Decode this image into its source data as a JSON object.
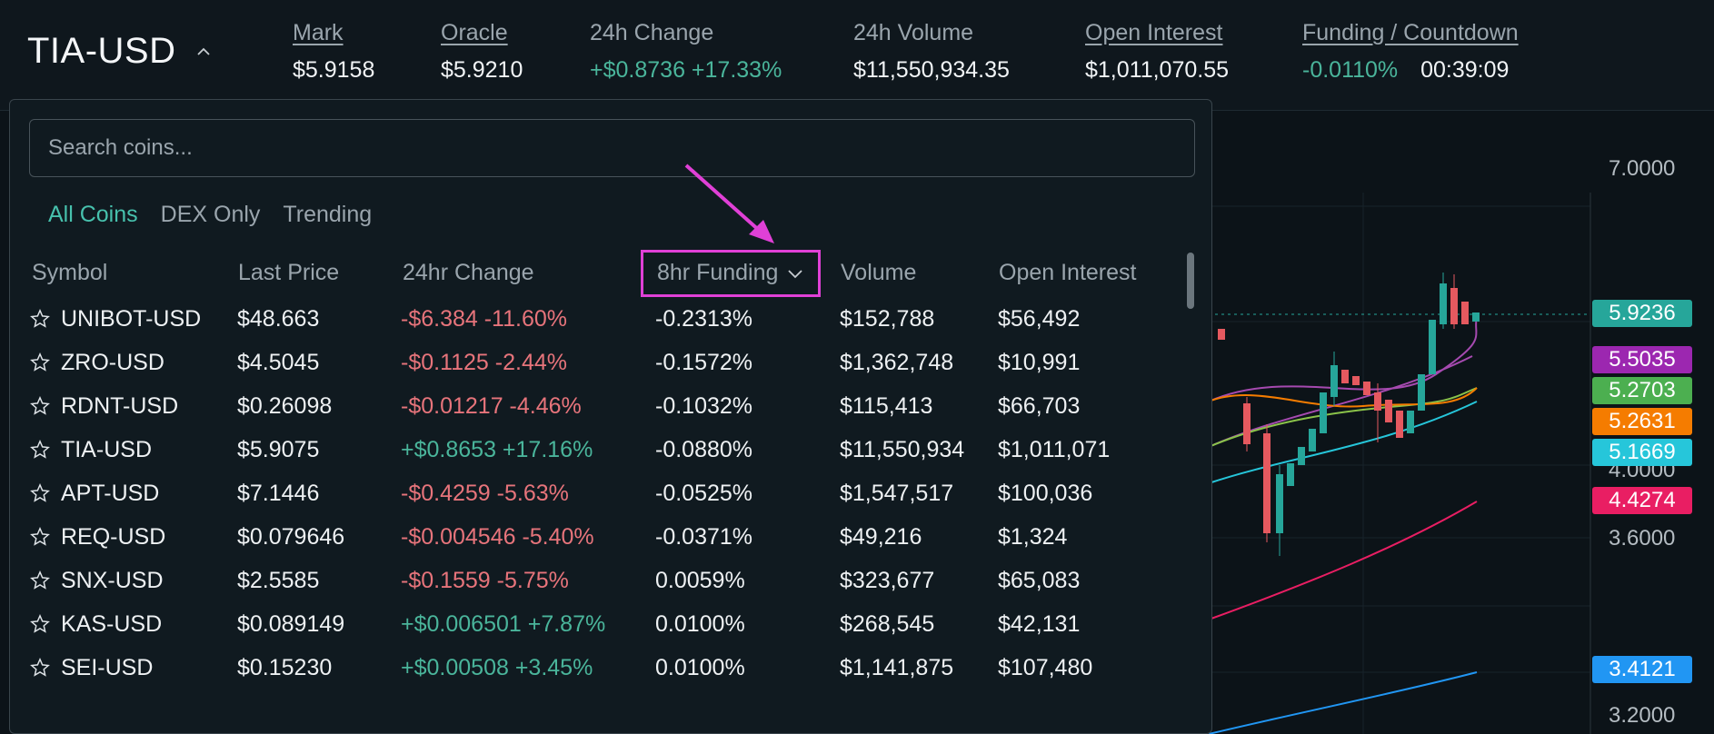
{
  "header": {
    "market": "TIA-USD",
    "stats": [
      {
        "label": "Mark",
        "value": "$5.9158",
        "underline": true
      },
      {
        "label": "Oracle",
        "value": "$5.9210",
        "underline": true
      },
      {
        "label": "24h Change",
        "value": "+$0.8736 +17.33%",
        "underline": false
      },
      {
        "label": "24h Volume",
        "value": "$11,550,934.35",
        "underline": false
      },
      {
        "label": "Open Interest",
        "value": "$1,011,070.55",
        "underline": true
      }
    ],
    "funding": {
      "label": "Funding / Countdown",
      "rate": "-0.0110%",
      "countdown": "00:39:09"
    }
  },
  "chart": {
    "axis_labels": [
      "7.0000",
      "4.0000",
      "3.6000",
      "3.2000"
    ],
    "price_tags": [
      {
        "value": "5.9236",
        "color": "#26a69a"
      },
      {
        "value": "5.5035",
        "color": "#9c27b0"
      },
      {
        "value": "5.2703",
        "color": "#4caf50"
      },
      {
        "value": "5.2631",
        "color": "#f57c00"
      },
      {
        "value": "5.1669",
        "color": "#26c6da"
      },
      {
        "value": "4.4274",
        "color": "#e91e63"
      },
      {
        "value": "3.4121",
        "color": "#2196f3"
      }
    ]
  },
  "dropdown": {
    "search_placeholder": "Search coins...",
    "tabs": [
      "All Coins",
      "DEX Only",
      "Trending"
    ],
    "active_tab": "All Coins",
    "columns": [
      "Symbol",
      "Last Price",
      "24hr Change",
      "8hr Funding",
      "Volume",
      "Open Interest"
    ],
    "sorted_column": "8hr Funding",
    "rows": [
      {
        "symbol": "UNIBOT-USD",
        "price": "$48.663",
        "change": "-$6.384 -11.60%",
        "dir": "down",
        "funding": "-0.2313%",
        "volume": "$152,788",
        "oi": "$56,492"
      },
      {
        "symbol": "ZRO-USD",
        "price": "$4.5045",
        "change": "-$0.1125 -2.44%",
        "dir": "down",
        "funding": "-0.1572%",
        "volume": "$1,362,748",
        "oi": "$10,991"
      },
      {
        "symbol": "RDNT-USD",
        "price": "$0.26098",
        "change": "-$0.01217 -4.46%",
        "dir": "down",
        "funding": "-0.1032%",
        "volume": "$115,413",
        "oi": "$66,703"
      },
      {
        "symbol": "TIA-USD",
        "price": "$5.9075",
        "change": "+$0.8653 +17.16%",
        "dir": "up",
        "funding": "-0.0880%",
        "volume": "$11,550,934",
        "oi": "$1,011,071"
      },
      {
        "symbol": "APT-USD",
        "price": "$7.1446",
        "change": "-$0.4259 -5.63%",
        "dir": "down",
        "funding": "-0.0525%",
        "volume": "$1,547,517",
        "oi": "$100,036"
      },
      {
        "symbol": "REQ-USD",
        "price": "$0.079646",
        "change": "-$0.004546 -5.40%",
        "dir": "down",
        "funding": "-0.0371%",
        "volume": "$49,216",
        "oi": "$1,324"
      },
      {
        "symbol": "SNX-USD",
        "price": "$2.5585",
        "change": "-$0.1559 -5.75%",
        "dir": "down",
        "funding": "0.0059%",
        "volume": "$323,677",
        "oi": "$65,083"
      },
      {
        "symbol": "KAS-USD",
        "price": "$0.089149",
        "change": "+$0.006501 +7.87%",
        "dir": "up",
        "funding": "0.0100%",
        "volume": "$268,545",
        "oi": "$42,131"
      },
      {
        "symbol": "SEI-USD",
        "price": "$0.15230",
        "change": "+$0.00508 +3.45%",
        "dir": "up",
        "funding": "0.0100%",
        "volume": "$1,141,875",
        "oi": "$107,480"
      }
    ]
  }
}
